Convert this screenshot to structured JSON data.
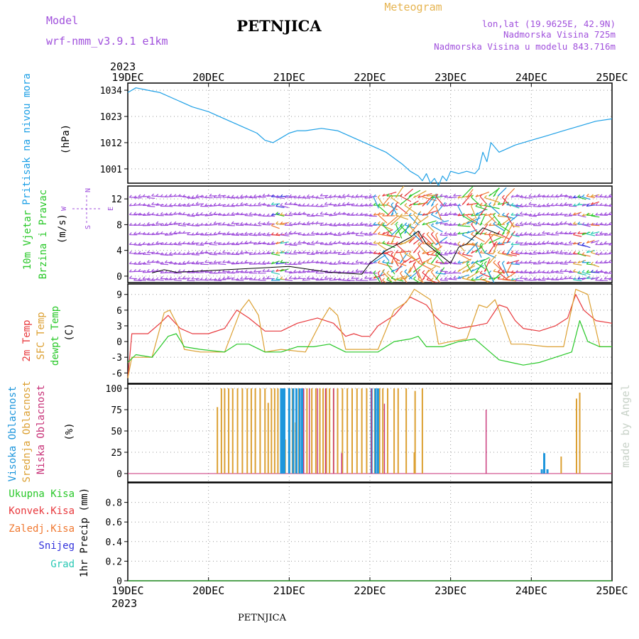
{
  "header": {
    "model_label": "Model",
    "model_name": "wrf-nmm_v3.9.1 e1km",
    "station": "PETNJICA",
    "meteogram": "Meteogram",
    "lonlat": "lon,lat (19.9625E, 42.9N)",
    "elevation": "Nadmorska Visina 725m",
    "model_elevation": "Nadmorska Visina u modelu 843.716m",
    "year": "2023",
    "footer_station": "PETNJICA",
    "credit": "made by Angel"
  },
  "colors": {
    "pressure": "#1ea0e6",
    "temp2m": "#e8383c",
    "sfc_temp": "#dca032",
    "dewpoint": "#28c828",
    "high_cloud": "#1e96dc",
    "mid_cloud": "#dca032",
    "low_cloud": "#c83278",
    "wind_label": "#28c828",
    "purple": "#a050dc",
    "meteogram": "#e6b450",
    "credit": "#c8d2c8"
  },
  "legend": {
    "wind_dirs": [
      "N",
      "E",
      "S",
      "W"
    ]
  },
  "chart_data": {
    "type": "meteogram",
    "x_dates": [
      "19DEC",
      "20DEC",
      "21DEC",
      "22DEC",
      "23DEC",
      "24DEC",
      "25DEC"
    ],
    "panels": [
      {
        "type": "line",
        "name": "pressure",
        "label": "Pritisak na nivou mora",
        "unit": "(hPa)",
        "ylim": [
          995,
          1037
        ],
        "yticks": [
          1001,
          1012,
          1023,
          1034
        ],
        "series": [
          {
            "color_key": "pressure",
            "x": [
              0,
              0.1,
              0.25,
              0.4,
              0.6,
              0.8,
              1.0,
              1.2,
              1.4,
              1.6,
              1.7,
              1.8,
              1.9,
              2.0,
              2.1,
              2.2,
              2.4,
              2.6,
              2.8,
              3.0,
              3.2,
              3.4,
              3.5,
              3.6,
              3.65,
              3.7,
              3.75,
              3.8,
              3.85,
              3.9,
              3.95,
              4.0,
              4.1,
              4.2,
              4.3,
              4.35,
              4.4,
              4.45,
              4.5,
              4.6,
              4.8,
              5.0,
              5.2,
              5.4,
              5.6,
              5.8,
              6.0
            ],
            "y": [
              1033,
              1035,
              1034,
              1033,
              1030,
              1027,
              1025,
              1022,
              1019,
              1016,
              1013,
              1012,
              1014,
              1016,
              1017,
              1017,
              1018,
              1017,
              1014,
              1011,
              1008,
              1003,
              1000,
              998,
              996,
              999,
              995,
              997,
              994,
              998,
              996,
              1000,
              999,
              1000,
              999,
              1001,
              1008,
              1004,
              1012,
              1008,
              1011,
              1013,
              1015,
              1017,
              1019,
              1021,
              1022
            ]
          }
        ]
      },
      {
        "type": "wind",
        "name": "wind",
        "label_lines": [
          "10m Vjetar",
          "Brzina i Pravac"
        ],
        "unit": "(m/s)",
        "ylim": [
          -1,
          14
        ],
        "yticks": [
          0,
          4,
          8,
          12
        ],
        "speed_line": {
          "x": [
            0.3,
            0.45,
            0.6,
            2.0,
            2.5,
            2.9,
            3.0,
            3.2,
            3.5,
            3.6,
            3.7,
            3.85,
            4.0,
            4.1,
            4.2,
            4.4,
            4.6
          ],
          "y": [
            0.5,
            1,
            0.6,
            1.5,
            0.6,
            0.3,
            2,
            4,
            6,
            7,
            5,
            3.5,
            2,
            4.5,
            5,
            7.5,
            6.5
          ]
        }
      },
      {
        "type": "line",
        "name": "temperature",
        "label_lines": [
          "2m Temp",
          "SFC Temp",
          "dewpt Temp"
        ],
        "unit": "(C)",
        "ylim": [
          -8,
          11
        ],
        "yticks": [
          -6,
          -3,
          0,
          3,
          6,
          9
        ],
        "series": [
          {
            "name": "2m Temp",
            "color_key": "temp2m",
            "x": [
              0,
              0.05,
              0.25,
              0.4,
              0.5,
              0.65,
              0.8,
              1.0,
              1.2,
              1.35,
              1.5,
              1.7,
              1.9,
              2.1,
              2.35,
              2.55,
              2.7,
              2.8,
              2.9,
              3.0,
              3.1,
              3.3,
              3.5,
              3.7,
              3.8,
              3.9,
              4.1,
              4.3,
              4.45,
              4.6,
              4.7,
              4.8,
              4.9,
              5.1,
              5.3,
              5.45,
              5.55,
              5.65,
              5.8,
              6.0
            ],
            "y": [
              -7,
              1.5,
              1.5,
              3.5,
              5,
              2.5,
              1.5,
              1.5,
              2.5,
              6,
              4.5,
              2,
              2,
              3.5,
              4.5,
              3.5,
              1,
              1.5,
              1,
              1,
              3,
              5,
              8.5,
              7,
              5,
              3.5,
              2.5,
              3,
              3.5,
              7,
              6.5,
              4,
              2.5,
              2,
              3,
              4.5,
              9,
              6,
              4,
              3.5
            ]
          },
          {
            "name": "SFC Temp",
            "color_key": "sfc_temp",
            "x": [
              0,
              0.05,
              0.3,
              0.45,
              0.52,
              0.62,
              0.7,
              0.9,
              1.2,
              1.4,
              1.5,
              1.62,
              1.7,
              1.9,
              2.2,
              2.4,
              2.5,
              2.6,
              2.7,
              2.9,
              3.1,
              3.3,
              3.45,
              3.55,
              3.65,
              3.75,
              3.85,
              4.0,
              4.2,
              4.35,
              4.45,
              4.55,
              4.6,
              4.75,
              4.9,
              5.2,
              5.4,
              5.55,
              5.7,
              5.85,
              6.0
            ],
            "y": [
              -7,
              -3,
              -3,
              5.5,
              6,
              3,
              -1.5,
              -2,
              -2,
              6,
              8,
              5,
              -2,
              -1.5,
              -2,
              4,
              6.5,
              5,
              -1.5,
              -1.5,
              -1.5,
              6,
              7.5,
              10,
              9,
              8,
              -0.5,
              0,
              0.5,
              7,
              6.5,
              8,
              6,
              -0.5,
              -0.5,
              -1,
              -1,
              10,
              9,
              -1,
              -1
            ]
          },
          {
            "name": "dewpt Temp",
            "color_key": "dewpoint",
            "x": [
              0,
              0.1,
              0.3,
              0.5,
              0.6,
              0.7,
              0.9,
              1.2,
              1.35,
              1.5,
              1.7,
              1.9,
              2.1,
              2.3,
              2.5,
              2.7,
              2.9,
              3.1,
              3.3,
              3.5,
              3.6,
              3.7,
              3.9,
              4.1,
              4.3,
              4.45,
              4.6,
              4.75,
              4.9,
              5.1,
              5.3,
              5.5,
              5.6,
              5.7,
              5.85,
              6.0
            ],
            "y": [
              -4,
              -2.5,
              -3,
              1,
              1.5,
              -1,
              -1.5,
              -2,
              -0.5,
              -0.5,
              -2,
              -2,
              -1,
              -1,
              -0.5,
              -2,
              -2,
              -2,
              0,
              0.5,
              1,
              -1,
              -1,
              0,
              0.5,
              -1.5,
              -3.5,
              -4,
              -4.5,
              -4,
              -3,
              -2,
              4,
              0,
              -1,
              -1
            ]
          }
        ]
      },
      {
        "type": "bar",
        "name": "cloud_cover",
        "label_lines": [
          "Visoka Oblacnost",
          "Srednja Oblacnost",
          "Niska Oblacnost"
        ],
        "unit": "(%)",
        "ylim": [
          -10,
          105
        ],
        "yticks": [
          0,
          25,
          50,
          75,
          100
        ],
        "mid_x": [
          1.11,
          1.16,
          1.2,
          1.25,
          1.3,
          1.36,
          1.42,
          1.48,
          1.53,
          1.58,
          1.64,
          1.7,
          1.74,
          1.78,
          1.82,
          1.86,
          1.9,
          1.95,
          2.0,
          2.04,
          2.08,
          2.12,
          2.17,
          2.22,
          2.28,
          2.33,
          2.38,
          2.42,
          2.46,
          2.5,
          2.55,
          2.6,
          2.66,
          2.72,
          2.78,
          2.84,
          2.9,
          2.96,
          3.06,
          3.12,
          3.16,
          3.22,
          3.3,
          3.35,
          3.45,
          3.55,
          3.56,
          3.65,
          5.37,
          5.56,
          5.6
        ],
        "mid_v": [
          78,
          100,
          100,
          100,
          100,
          100,
          100,
          100,
          100,
          100,
          100,
          100,
          83,
          100,
          100,
          100,
          100,
          40,
          63,
          100,
          60,
          100,
          100,
          100,
          100,
          100,
          100,
          100,
          100,
          100,
          100,
          100,
          100,
          100,
          100,
          100,
          100,
          100,
          100,
          100,
          100,
          100,
          100,
          100,
          100,
          25,
          97,
          100,
          20,
          88,
          95
        ],
        "high_x": [
          1.9,
          1.92,
          1.94,
          2.0,
          2.05,
          2.09,
          2.13,
          2.16,
          3.02,
          3.07,
          3.1,
          5.13,
          5.16,
          5.2
        ],
        "high_v": [
          100,
          100,
          100,
          100,
          100,
          100,
          100,
          100,
          100,
          100,
          100,
          5,
          24,
          5
        ],
        "low_x": [
          2.18,
          2.25,
          2.35,
          2.45,
          2.55,
          2.65,
          3.02,
          3.18,
          4.44
        ],
        "low_v": [
          100,
          100,
          100,
          100,
          100,
          24,
          100,
          82,
          75
        ]
      },
      {
        "type": "line",
        "name": "precip",
        "label": "1hr Precip (mm)",
        "ylim": [
          0,
          1
        ],
        "yticks": [
          0,
          0.2,
          0.4,
          0.6,
          0.8
        ],
        "legend": [
          {
            "label": "Ukupna Kisa",
            "color": "#28c828"
          },
          {
            "label": "Konvek.Kisa",
            "color": "#e8383c"
          },
          {
            "label": "Zaledj.Kisa",
            "color": "#f07830"
          },
          {
            "label": "Snijeg",
            "color": "#3232dc"
          },
          {
            "label": "Grad",
            "color": "#28c8b4"
          }
        ]
      }
    ]
  }
}
